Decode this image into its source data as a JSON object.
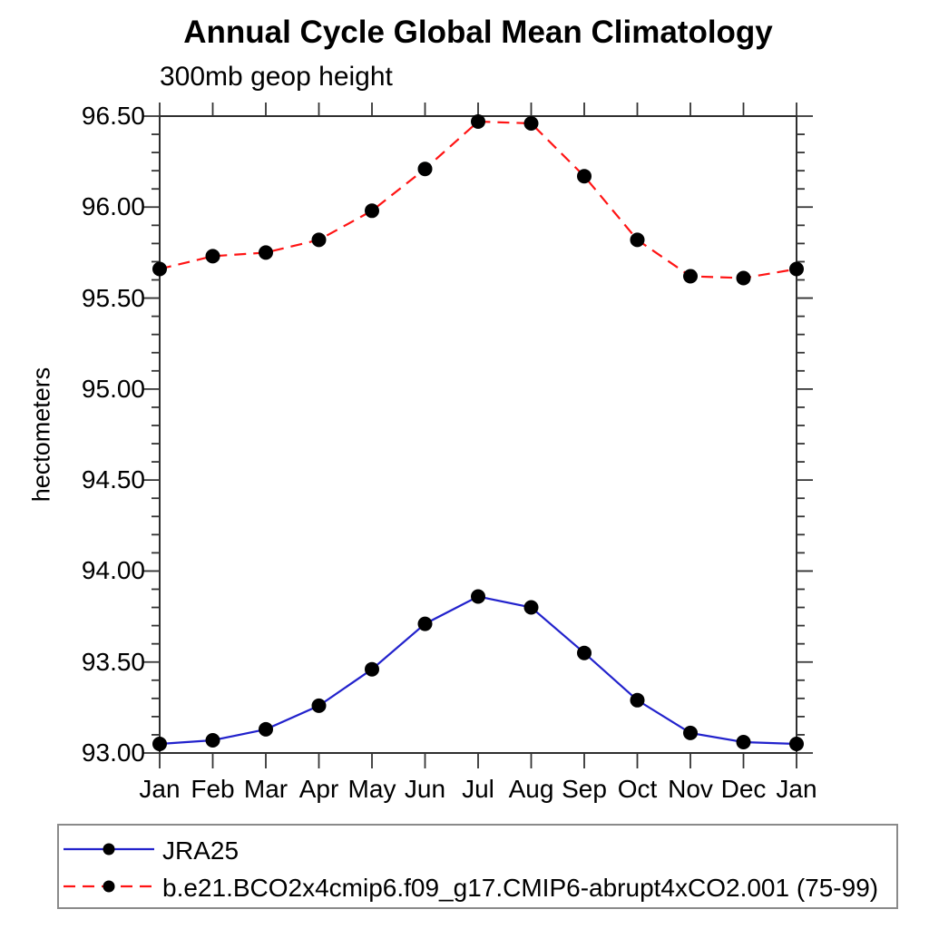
{
  "title": "Annual Cycle Global Mean Climatology",
  "subtitle": "300mb geop height",
  "chart_data": {
    "type": "line",
    "title": "Annual Cycle Global Mean Climatology",
    "subtitle": "300mb geop height",
    "xlabel": "",
    "ylabel": "hectometers",
    "categories": [
      "Jan",
      "Feb",
      "Mar",
      "Apr",
      "May",
      "Jun",
      "Jul",
      "Aug",
      "Sep",
      "Oct",
      "Nov",
      "Dec",
      "Jan"
    ],
    "ylim": [
      93.0,
      96.5
    ],
    "ytick_major_step": 0.5,
    "ytick_minor_step": 0.1,
    "ytick_labels": [
      "96.50",
      "96.00",
      "95.50",
      "95.00",
      "94.50",
      "94.00",
      "93.50",
      "93.00"
    ],
    "grid": false,
    "legend_position": "bottom-left-box",
    "axis_color": "#333333",
    "marker_color": "#000000",
    "series": [
      {
        "name": "JRA25",
        "color": "#2222cc",
        "line_style": "solid",
        "marker": "filled-circle",
        "values": [
          93.05,
          93.07,
          93.13,
          93.26,
          93.46,
          93.71,
          93.86,
          93.8,
          93.55,
          93.29,
          93.11,
          93.06,
          93.05
        ]
      },
      {
        "name": "b.e21.BCO2x4cmip6.f09_g17.CMIP6-abrupt4xCO2.001 (75-99)",
        "color": "#ff1414",
        "line_style": "dashed",
        "marker": "filled-circle",
        "values": [
          95.66,
          95.73,
          95.75,
          95.82,
          95.98,
          96.21,
          96.47,
          96.46,
          96.17,
          95.82,
          95.62,
          95.61,
          95.66
        ]
      }
    ]
  }
}
